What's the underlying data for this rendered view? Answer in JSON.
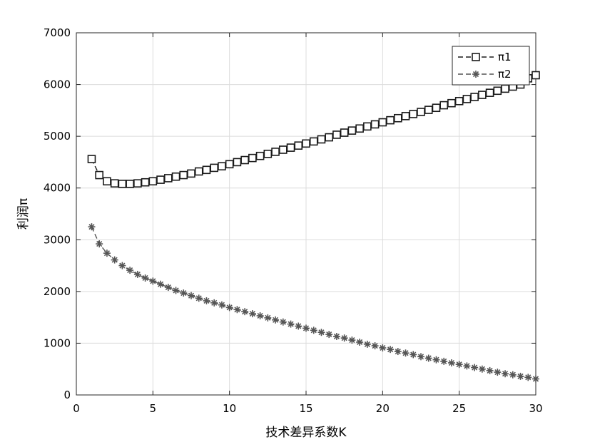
{
  "chart_data": {
    "type": "line",
    "xlabel": "技术差异系数K",
    "ylabel": "利润π",
    "xlim": [
      0,
      30
    ],
    "ylim": [
      0,
      7000
    ],
    "xticks": [
      "0",
      "5",
      "10",
      "15",
      "20",
      "25",
      "30"
    ],
    "yticks": [
      "0",
      "1000",
      "2000",
      "3000",
      "4000",
      "5000",
      "6000",
      "7000"
    ],
    "grid": true,
    "legend_position": "top-right",
    "series": [
      {
        "name": "π1",
        "marker": "square",
        "color": "#1a1a1a",
        "x": [
          1,
          1.5,
          2,
          2.5,
          3,
          3.5,
          4,
          4.5,
          5,
          5.5,
          6,
          6.5,
          7,
          7.5,
          8,
          8.5,
          9,
          9.5,
          10,
          10.5,
          11,
          11.5,
          12,
          12.5,
          13,
          13.5,
          14,
          14.5,
          15,
          15.5,
          16,
          16.5,
          17,
          17.5,
          18,
          18.5,
          19,
          19.5,
          20,
          20.5,
          21,
          21.5,
          22,
          22.5,
          23,
          23.5,
          24,
          24.5,
          25,
          25.5,
          26,
          26.5,
          27,
          27.5,
          28,
          28.5,
          29,
          29.5,
          30
        ],
        "values": [
          4560,
          4250,
          4130,
          4090,
          4080,
          4080,
          4090,
          4110,
          4130,
          4160,
          4190,
          4220,
          4250,
          4280,
          4320,
          4350,
          4390,
          4420,
          4460,
          4500,
          4540,
          4580,
          4620,
          4660,
          4700,
          4740,
          4780,
          4820,
          4860,
          4900,
          4940,
          4980,
          5030,
          5070,
          5110,
          5150,
          5190,
          5230,
          5270,
          5310,
          5350,
          5390,
          5430,
          5470,
          5510,
          5550,
          5600,
          5640,
          5680,
          5720,
          5760,
          5800,
          5840,
          5880,
          5920,
          5960,
          6000,
          6120,
          6180
        ]
      },
      {
        "name": "π2",
        "marker": "asterisk",
        "color": "#555555",
        "x": [
          1,
          1.5,
          2,
          2.5,
          3,
          3.5,
          4,
          4.5,
          5,
          5.5,
          6,
          6.5,
          7,
          7.5,
          8,
          8.5,
          9,
          9.5,
          10,
          10.5,
          11,
          11.5,
          12,
          12.5,
          13,
          13.5,
          14,
          14.5,
          15,
          15.5,
          16,
          16.5,
          17,
          17.5,
          18,
          18.5,
          19,
          19.5,
          20,
          20.5,
          21,
          21.5,
          22,
          22.5,
          23,
          23.5,
          24,
          24.5,
          25,
          25.5,
          26,
          26.5,
          27,
          27.5,
          28,
          28.5,
          29,
          29.5,
          30
        ],
        "values": [
          3250,
          2920,
          2740,
          2610,
          2500,
          2410,
          2330,
          2260,
          2200,
          2140,
          2080,
          2020,
          1970,
          1920,
          1870,
          1820,
          1780,
          1740,
          1690,
          1650,
          1610,
          1570,
          1530,
          1490,
          1450,
          1410,
          1370,
          1330,
          1290,
          1250,
          1210,
          1170,
          1130,
          1100,
          1060,
          1020,
          980,
          950,
          910,
          880,
          840,
          810,
          780,
          740,
          710,
          680,
          650,
          620,
          590,
          560,
          530,
          500,
          470,
          440,
          410,
          390,
          360,
          340,
          310
        ]
      }
    ]
  }
}
